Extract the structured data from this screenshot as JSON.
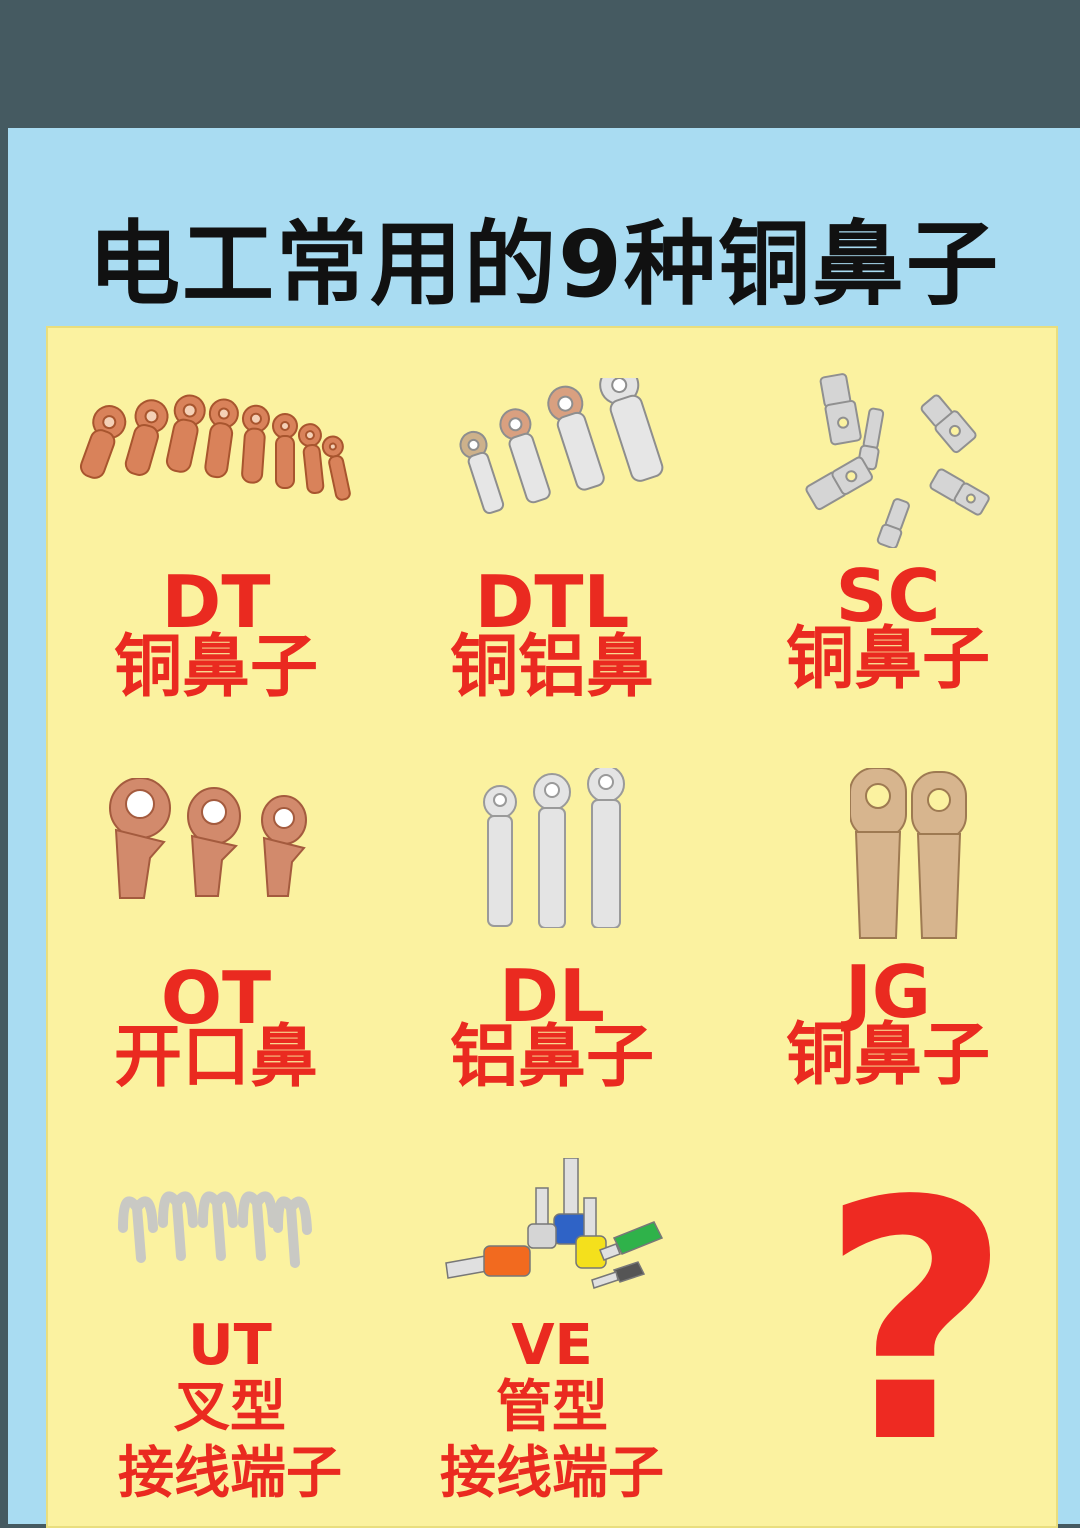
{
  "title": "电工常用的9种铜鼻子",
  "items": [
    {
      "code": "DT",
      "name": "铜鼻子",
      "icon": "copper-lug-set-icon"
    },
    {
      "code": "DTL",
      "name": "铜铝鼻",
      "icon": "copper-aluminum-lug-set-icon"
    },
    {
      "code": "SC",
      "name": "铜鼻子",
      "icon": "sc-lug-set-icon"
    },
    {
      "code": "OT",
      "name": "开口鼻",
      "icon": "open-lug-set-icon"
    },
    {
      "code": "DL",
      "name": "铝鼻子",
      "icon": "aluminum-lug-set-icon"
    },
    {
      "code": "JG",
      "name": "铜鼻子",
      "icon": "jg-lug-set-icon"
    },
    {
      "code": "UT",
      "line1": "叉型",
      "line2": "接线端子",
      "icon": "fork-terminal-set-icon"
    },
    {
      "code": "VE",
      "line1": "管型",
      "line2": "接线端子",
      "icon": "tube-terminal-set-icon"
    },
    {
      "symbol": "?",
      "icon": "question-mark-icon"
    }
  ],
  "colors": {
    "background": "#a9dcf2",
    "board": "#fbf2a0",
    "label": "#ea2a20",
    "title": "#111111"
  }
}
